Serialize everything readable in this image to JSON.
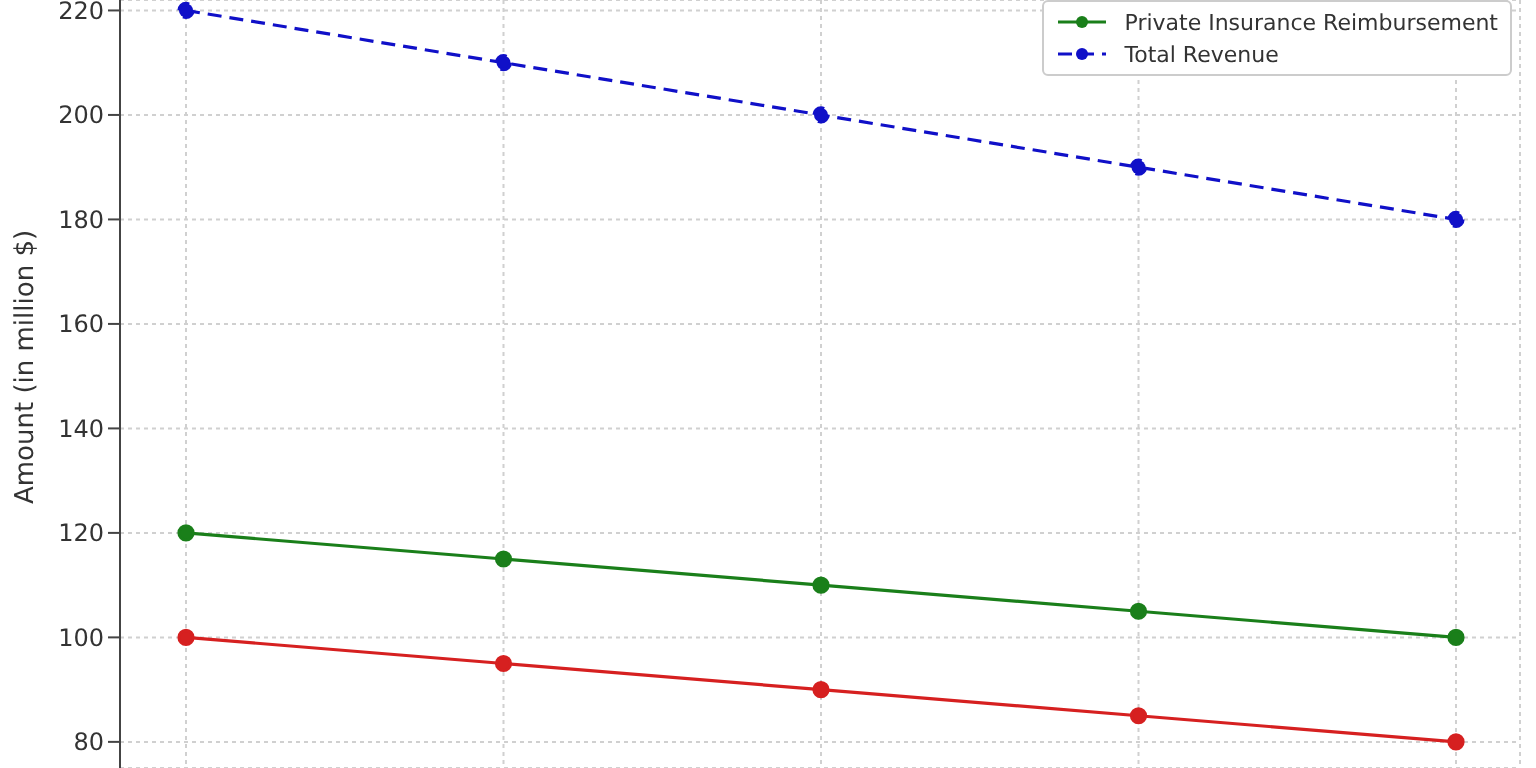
{
  "chart_data": {
    "type": "line",
    "ylabel": "Amount (in million $)",
    "categories": [
      null,
      null,
      null,
      null,
      null
    ],
    "series": [
      {
        "color": "#d62020",
        "values": [
          100,
          95,
          90,
          85,
          80
        ],
        "line_style": "solid"
      },
      {
        "name": "Private Insurance Reimbursement",
        "color": "#1a7f1a",
        "values": [
          120,
          115,
          110,
          105,
          100
        ],
        "line_style": "solid"
      },
      {
        "name": "Total Revenue",
        "color": "#1010c8",
        "values": [
          220,
          210,
          200,
          190,
          180
        ],
        "line_style": "dashed"
      }
    ],
    "ylim": [
      75,
      222
    ],
    "yticks": [
      80,
      100,
      120,
      140,
      160,
      180,
      200,
      220
    ],
    "grid": true,
    "legend": "top right",
    "marker": "circle",
    "tick_labels": "y"
  }
}
